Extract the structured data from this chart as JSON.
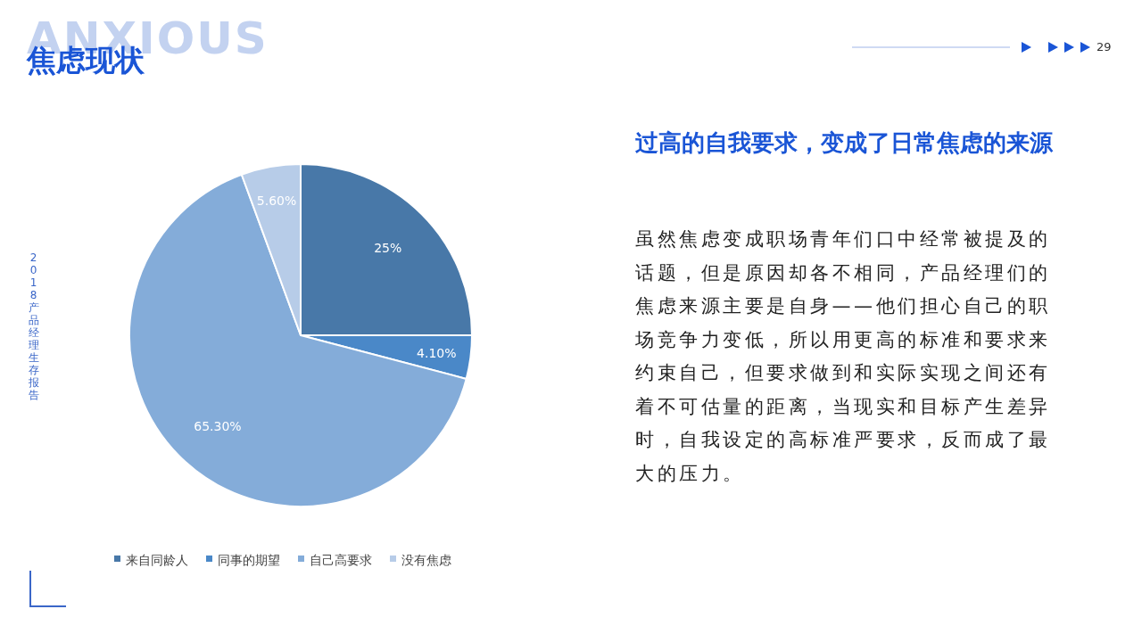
{
  "chart_data": {
    "type": "pie",
    "title": "焦虑现状",
    "subtitle": "过高的自我要求，变成了日常焦虑的来源",
    "categories": [
      "来自同龄人",
      "同事的期望",
      "自己高要求",
      "没有焦虑"
    ],
    "values": [
      25,
      4.1,
      65.3,
      5.6
    ],
    "value_labels": [
      "25%",
      "4.10%",
      "65.30%",
      "5.60%"
    ],
    "colors": [
      "#4878a8",
      "#4a88c8",
      "#84acd9",
      "#b7cce8"
    ],
    "legend": "bottom",
    "annotations": [
      "ANXIOUS",
      "虽然焦虑变成职场青年们口中经常被提及的话题，但是原因却各不相同，产品经理们的焦虑来源主要是自身——他们担心自己的职场竞争力变低，所以用更高的标准和要求来约束自己，但要求做到和实际实现之间还有着不可估量的距离，当现实和目标产生差异时，自我设定的高标准严要求，反而成了最大的压力。",
      "2018产品经理生存报告",
      "29"
    ]
  }
}
